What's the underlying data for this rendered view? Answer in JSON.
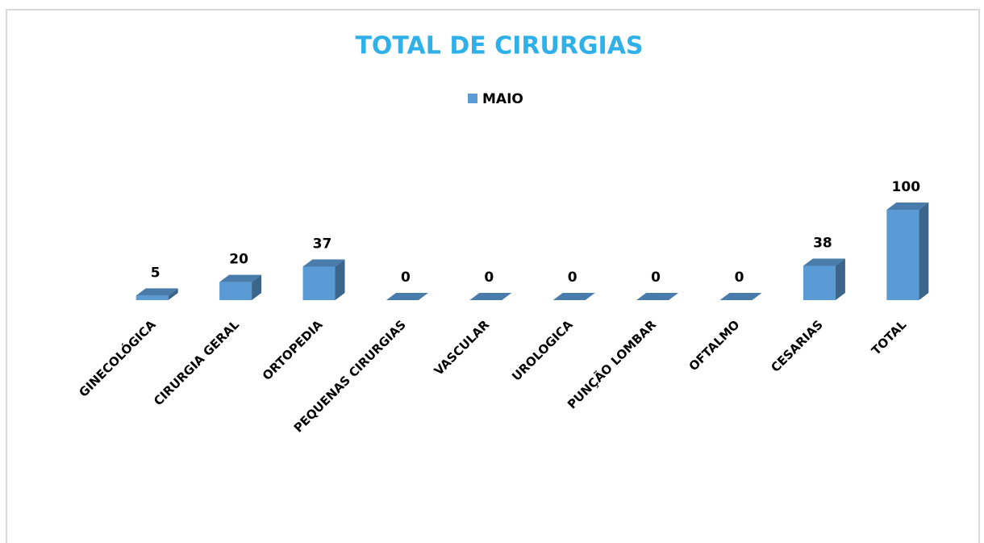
{
  "chart_data": {
    "type": "bar3d",
    "title": "TOTAL DE CIRURGIAS",
    "categories": [
      "GINECOLÓGICA",
      "CIRURGIA GERAL",
      "ORTOPEDIA",
      "PEQUENAS CIRURGIAS",
      "VASCULAR",
      "UROLOGICA",
      "PUNÇÃO LOMBAR",
      "OFTALMO",
      "CESARIAS",
      "TOTAL"
    ],
    "series": [
      {
        "name": "MAIO",
        "color": "#5b9bd5",
        "values": [
          5,
          20,
          37,
          0,
          0,
          0,
          0,
          0,
          38,
          100
        ]
      }
    ],
    "legend": "top"
  }
}
